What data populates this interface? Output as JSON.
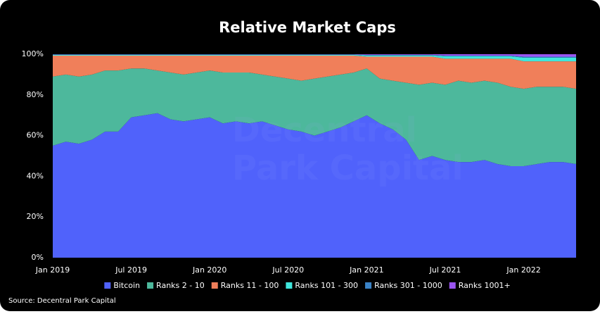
{
  "chart_data": {
    "type": "stacked-area",
    "title": "Relative Market Caps",
    "watermark": [
      "Decentral",
      "Park Capital"
    ],
    "source": "Source: Decentral Park Capital",
    "categories": [
      "Jan 2019",
      null,
      null,
      null,
      null,
      null,
      "Jul 2019",
      null,
      null,
      null,
      null,
      null,
      "Jan 2020",
      null,
      null,
      null,
      null,
      null,
      "Jul 2020",
      null,
      null,
      null,
      null,
      null,
      "Jan 2021",
      null,
      null,
      null,
      null,
      null,
      "Jul 2021",
      null,
      null,
      null,
      null,
      null,
      "Jan 2022",
      null,
      null,
      null,
      null
    ],
    "series": [
      {
        "name": "Bitcoin",
        "color": "#5062fb",
        "values": [
          55,
          57,
          56,
          58,
          62,
          62,
          69,
          70,
          71,
          68,
          67,
          68,
          69,
          66,
          67,
          66,
          67,
          65,
          63,
          62,
          60,
          62,
          64,
          67,
          70,
          66,
          63,
          58,
          48,
          50,
          48,
          47,
          47,
          48,
          46,
          45,
          45,
          46,
          47,
          47,
          46
        ]
      },
      {
        "name": "Ranks 2 - 10",
        "color": "#4db89c",
        "values": [
          34,
          33,
          33,
          32,
          30,
          30,
          24,
          23,
          21,
          23,
          23,
          23,
          23,
          25,
          24,
          25,
          23,
          24,
          25,
          25,
          28,
          27,
          26,
          24,
          23,
          22,
          24,
          28,
          37,
          36,
          37,
          40,
          39,
          39,
          40,
          39,
          38,
          38,
          37,
          37,
          37
        ]
      },
      {
        "name": "Ranks 11 - 100",
        "color": "#f07f5a",
        "values": [
          10.3,
          9.3,
          10.3,
          9.3,
          7.3,
          7.3,
          6.3,
          6.3,
          7.3,
          8.3,
          9.3,
          8.3,
          7.3,
          8.3,
          8.3,
          8.3,
          9.3,
          10.3,
          11.3,
          12.3,
          11.3,
          10.3,
          9.3,
          8.3,
          5.8,
          10.8,
          11.8,
          12.8,
          13.8,
          12.8,
          12.8,
          10.8,
          11.8,
          10.8,
          11.8,
          13.8,
          13.5,
          12.5,
          12.5,
          12.5,
          13.5
        ]
      },
      {
        "name": "Ranks 101 - 300",
        "color": "#3fe6dc",
        "values": [
          0.4,
          0.4,
          0.4,
          0.4,
          0.4,
          0.4,
          0.4,
          0.4,
          0.4,
          0.4,
          0.4,
          0.4,
          0.4,
          0.4,
          0.4,
          0.4,
          0.4,
          0.4,
          0.4,
          0.4,
          0.4,
          0.4,
          0.4,
          0.4,
          0.6,
          0.6,
          0.6,
          0.6,
          0.6,
          0.6,
          1.2,
          1.2,
          1.2,
          1.2,
          1.2,
          1.2,
          1.8,
          1.8,
          1.8,
          1.8,
          1.8
        ]
      },
      {
        "name": "Ranks 301 - 1000",
        "color": "#3a82c6",
        "values": [
          0.2,
          0.2,
          0.2,
          0.2,
          0.2,
          0.2,
          0.2,
          0.2,
          0.2,
          0.2,
          0.2,
          0.2,
          0.2,
          0.2,
          0.2,
          0.2,
          0.2,
          0.2,
          0.2,
          0.2,
          0.2,
          0.2,
          0.2,
          0.2,
          0.3,
          0.3,
          0.3,
          0.3,
          0.3,
          0.3,
          0.3,
          0.3,
          0.3,
          0.3,
          0.3,
          0.3,
          0.5,
          0.5,
          0.5,
          0.5,
          0.5
        ]
      },
      {
        "name": "Ranks 1001+",
        "color": "#9b55f2",
        "values": [
          0.1,
          0.1,
          0.1,
          0.1,
          0.1,
          0.1,
          0.1,
          0.1,
          0.1,
          0.1,
          0.1,
          0.1,
          0.1,
          0.1,
          0.1,
          0.1,
          0.1,
          0.1,
          0.1,
          0.1,
          0.1,
          0.1,
          0.1,
          0.1,
          0.3,
          0.3,
          0.3,
          0.3,
          0.3,
          0.3,
          0.7,
          0.7,
          0.7,
          0.7,
          0.7,
          0.7,
          1.2,
          1.2,
          1.2,
          1.2,
          1.2
        ]
      }
    ],
    "ylim": [
      0,
      100
    ],
    "yticks": [
      {
        "value": 0,
        "label": "0%"
      },
      {
        "value": 20,
        "label": "20%"
      },
      {
        "value": 40,
        "label": "40%"
      },
      {
        "value": 60,
        "label": "60%"
      },
      {
        "value": 80,
        "label": "80%"
      },
      {
        "value": 100,
        "label": "100%"
      }
    ],
    "legend": "bottom"
  }
}
